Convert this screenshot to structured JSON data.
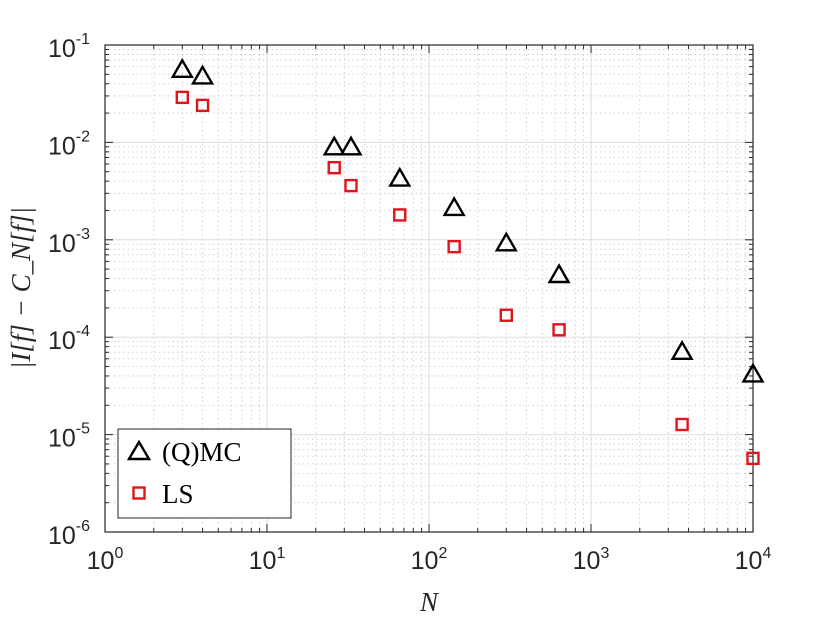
{
  "chart_data": {
    "type": "scatter",
    "xlabel": "N",
    "ylabel": "|I[f] − C_N[f]|",
    "xscale": "log",
    "yscale": "log",
    "xlim": [
      1,
      10000
    ],
    "ylim": [
      1e-06,
      0.1
    ],
    "grid": true,
    "legend_position": "bottom-left",
    "x_ticks": [
      {
        "value": 1,
        "base": "10",
        "exp": "0"
      },
      {
        "value": 10,
        "base": "10",
        "exp": "1"
      },
      {
        "value": 100,
        "base": "10",
        "exp": "2"
      },
      {
        "value": 1000,
        "base": "10",
        "exp": "3"
      },
      {
        "value": 10000,
        "base": "10",
        "exp": "4"
      }
    ],
    "y_ticks": [
      {
        "value": 0.1,
        "base": "10",
        "exp": "-1"
      },
      {
        "value": 0.01,
        "base": "10",
        "exp": "-2"
      },
      {
        "value": 0.001,
        "base": "10",
        "exp": "-3"
      },
      {
        "value": 0.0001,
        "base": "10",
        "exp": "-4"
      },
      {
        "value": 1e-05,
        "base": "10",
        "exp": "-5"
      },
      {
        "value": 1e-06,
        "base": "10",
        "exp": "-6"
      }
    ],
    "series": [
      {
        "name": "(Q)MC",
        "marker": "triangle",
        "color": "#000000",
        "x": [
          3,
          4,
          26,
          33,
          66,
          143,
          300,
          635,
          3650,
          10000
        ],
        "y": [
          0.055,
          0.047,
          0.0088,
          0.0088,
          0.0042,
          0.0021,
          0.00091,
          0.00043,
          7e-05,
          4.1e-05
        ]
      },
      {
        "name": "LS",
        "marker": "square",
        "color": "#e0141b",
        "x": [
          3,
          4,
          26,
          33,
          66,
          143,
          300,
          635,
          3650,
          10000
        ],
        "y": [
          0.029,
          0.024,
          0.0055,
          0.0036,
          0.0018,
          0.00085,
          0.000168,
          0.000119,
          1.27e-05,
          5.7e-06
        ]
      }
    ]
  }
}
